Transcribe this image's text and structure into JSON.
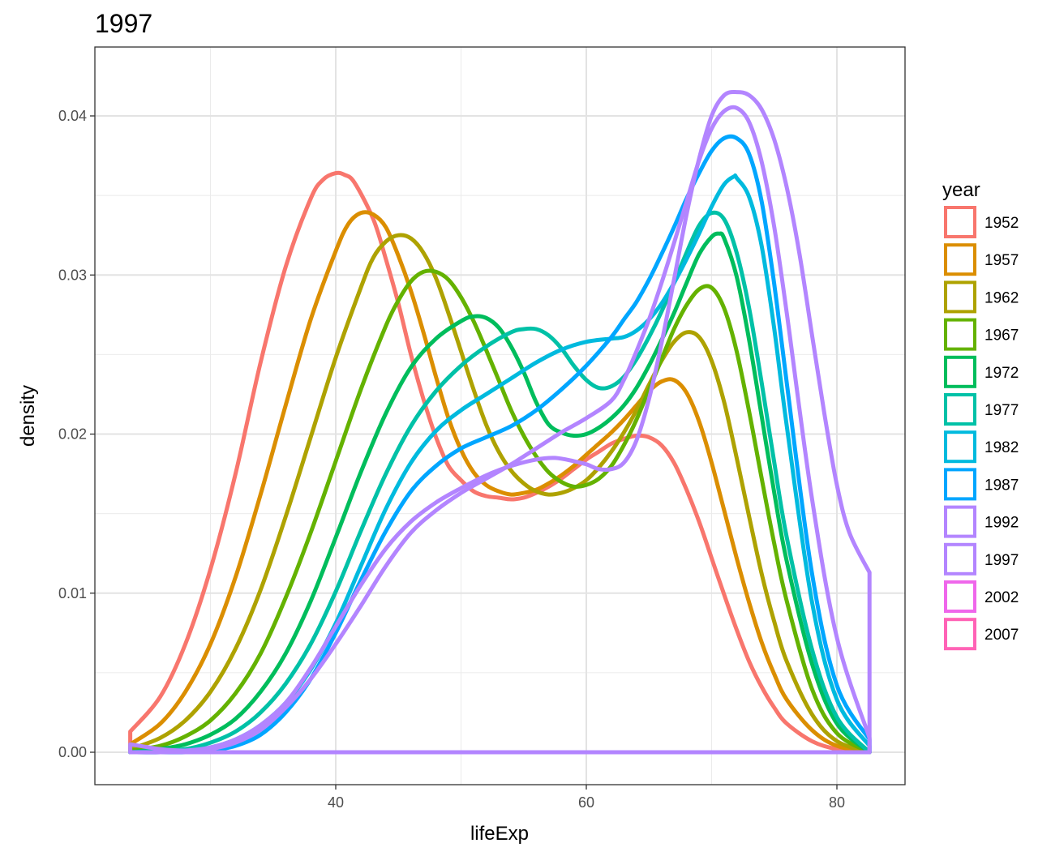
{
  "chart_data": {
    "type": "line",
    "title": "1997",
    "xlabel": "lifeExp",
    "ylabel": "density",
    "xlim": [
      20.2,
      85.4
    ],
    "ylim": [
      -0.002,
      0.0437
    ],
    "x_ticks": [
      40,
      60,
      80
    ],
    "x_tick_labels": [
      "40",
      "60",
      "80"
    ],
    "x_minor_ticks": [
      30,
      50,
      70
    ],
    "y_ticks": [
      0.0,
      0.01,
      0.02,
      0.03,
      0.04
    ],
    "y_tick_labels": [
      "0.00",
      "0.01",
      "0.02",
      "0.03",
      "0.04"
    ],
    "y_minor_ticks": [
      0.005,
      0.015,
      0.025,
      0.035
    ],
    "grid": true,
    "legend": {
      "title": "year",
      "placement": "right",
      "entries": [
        "1952",
        "1957",
        "1962",
        "1967",
        "1972",
        "1977",
        "1982",
        "1987",
        "1992",
        "1997",
        "2002",
        "2007"
      ]
    },
    "series": [
      {
        "name": "1952",
        "color": "#F8766D",
        "x": [
          23.6,
          26,
          28,
          30,
          32,
          34,
          36,
          38,
          39,
          40,
          40.7,
          41.5,
          43,
          44,
          45,
          46,
          47,
          48,
          49,
          50,
          51,
          52,
          53,
          54,
          55,
          56,
          57,
          58,
          59,
          60,
          61,
          62,
          63,
          64,
          65,
          66,
          67,
          68,
          69,
          70,
          71,
          72,
          73,
          74,
          75,
          76,
          78,
          80,
          82.6
        ],
        "y": [
          0.0013,
          0.0035,
          0.0068,
          0.0115,
          0.0175,
          0.0245,
          0.0305,
          0.0348,
          0.036,
          0.0364,
          0.0363,
          0.0358,
          0.0335,
          0.031,
          0.0282,
          0.025,
          0.0222,
          0.0198,
          0.018,
          0.0171,
          0.0164,
          0.0161,
          0.016,
          0.0159,
          0.016,
          0.0163,
          0.0167,
          0.0172,
          0.0178,
          0.0184,
          0.0189,
          0.0194,
          0.0197,
          0.0199,
          0.0198,
          0.0193,
          0.0182,
          0.0165,
          0.0145,
          0.0122,
          0.0099,
          0.0077,
          0.0057,
          0.0041,
          0.0028,
          0.0018,
          0.0007,
          0.0002,
          0.0
        ]
      },
      {
        "name": "1957",
        "color": "#DB8E00",
        "x": [
          23.6,
          26,
          28,
          30,
          32,
          34,
          36,
          38,
          40,
          41,
          42,
          43,
          44,
          45,
          46,
          47,
          48,
          49,
          50,
          51,
          52,
          53,
          54,
          55,
          56,
          57,
          58,
          59,
          60,
          61,
          62,
          63,
          64,
          65,
          66,
          67,
          68,
          69,
          70,
          71,
          72,
          73,
          74,
          75,
          76,
          78,
          80,
          82.6
        ],
        "y": [
          0.0005,
          0.0018,
          0.0038,
          0.0068,
          0.011,
          0.0162,
          0.0218,
          0.0272,
          0.0315,
          0.0332,
          0.0339,
          0.0338,
          0.033,
          0.0312,
          0.029,
          0.0264,
          0.0236,
          0.021,
          0.019,
          0.0176,
          0.0168,
          0.0164,
          0.0162,
          0.0163,
          0.0165,
          0.0169,
          0.0174,
          0.018,
          0.0187,
          0.0194,
          0.0201,
          0.0209,
          0.0218,
          0.0227,
          0.0233,
          0.0234,
          0.0226,
          0.0208,
          0.0182,
          0.0152,
          0.0122,
          0.0094,
          0.0069,
          0.0049,
          0.0033,
          0.0014,
          0.0004,
          0.0
        ]
      },
      {
        "name": "1962",
        "color": "#AEA200",
        "x": [
          23.6,
          26,
          28,
          30,
          32,
          34,
          36,
          38,
          40,
          42,
          43,
          44,
          45,
          46,
          47,
          48,
          49,
          50,
          51,
          52,
          53,
          54,
          55,
          56,
          57,
          58,
          59,
          60,
          61,
          62,
          63,
          64,
          65,
          66,
          67,
          68,
          69,
          70,
          71,
          72,
          73,
          74,
          75,
          76,
          78,
          80,
          82.6
        ],
        "y": [
          0.0002,
          0.0009,
          0.002,
          0.0038,
          0.0065,
          0.0102,
          0.0148,
          0.0198,
          0.0248,
          0.0292,
          0.0311,
          0.0321,
          0.0325,
          0.0323,
          0.0314,
          0.0298,
          0.0276,
          0.0252,
          0.0228,
          0.0206,
          0.0189,
          0.0177,
          0.0169,
          0.0164,
          0.0162,
          0.0163,
          0.0166,
          0.0171,
          0.0179,
          0.0189,
          0.0201,
          0.0215,
          0.0231,
          0.0246,
          0.0258,
          0.0264,
          0.0261,
          0.0246,
          0.022,
          0.0185,
          0.0148,
          0.0112,
          0.0082,
          0.0057,
          0.0024,
          0.0007,
          0.0
        ]
      },
      {
        "name": "1967",
        "color": "#64B200",
        "x": [
          23.6,
          26,
          28,
          30,
          32,
          34,
          36,
          38,
          40,
          42,
          44,
          45,
          46,
          47,
          48,
          49,
          50,
          51,
          52,
          53,
          54,
          55,
          56,
          57,
          58,
          59,
          60,
          61,
          62,
          63,
          64,
          65,
          66,
          67,
          68,
          69,
          70,
          71,
          72,
          73,
          74,
          75,
          76,
          78,
          80,
          82.6
        ],
        "y": [
          0.0001,
          0.0004,
          0.001,
          0.002,
          0.0037,
          0.0062,
          0.0097,
          0.0138,
          0.0183,
          0.0228,
          0.0268,
          0.0284,
          0.0296,
          0.0302,
          0.0302,
          0.0297,
          0.0286,
          0.0271,
          0.0253,
          0.0234,
          0.0215,
          0.0199,
          0.0186,
          0.0176,
          0.017,
          0.0167,
          0.0168,
          0.0172,
          0.018,
          0.0193,
          0.0209,
          0.0228,
          0.0247,
          0.0266,
          0.0281,
          0.0291,
          0.0292,
          0.0279,
          0.0252,
          0.0214,
          0.0172,
          0.0131,
          0.0095,
          0.004,
          0.0012,
          0.0
        ]
      },
      {
        "name": "1972",
        "color": "#00BD5C",
        "x": [
          23.6,
          26,
          28,
          30,
          32,
          34,
          36,
          38,
          40,
          42,
          44,
          46,
          48,
          50,
          51,
          52,
          53,
          54,
          55,
          56,
          57,
          58,
          59,
          60,
          61,
          62,
          63,
          64,
          65,
          66,
          67,
          68,
          69,
          70,
          70.6,
          71,
          72,
          73,
          74,
          75,
          76,
          78,
          80,
          82.6
        ],
        "y": [
          0.0,
          0.0002,
          0.0005,
          0.0011,
          0.0021,
          0.0038,
          0.0062,
          0.0095,
          0.0135,
          0.0176,
          0.0213,
          0.0242,
          0.026,
          0.0271,
          0.0274,
          0.0273,
          0.0267,
          0.0255,
          0.0239,
          0.022,
          0.0206,
          0.0201,
          0.0199,
          0.02,
          0.0204,
          0.021,
          0.0218,
          0.0229,
          0.0243,
          0.0259,
          0.0276,
          0.0295,
          0.0313,
          0.0324,
          0.0326,
          0.0323,
          0.0299,
          0.0259,
          0.0211,
          0.0163,
          0.012,
          0.0056,
          0.0018,
          0.0
        ]
      },
      {
        "name": "1977",
        "color": "#00C1A7",
        "x": [
          23.6,
          26,
          28,
          30,
          32,
          34,
          36,
          38,
          40,
          42,
          44,
          46,
          48,
          50,
          52,
          54,
          55,
          56,
          57,
          58,
          59,
          60,
          61,
          62,
          63,
          64,
          65,
          66,
          67,
          68,
          69,
          70,
          71,
          72,
          73,
          74,
          75,
          76,
          78,
          80,
          82.6
        ],
        "y": [
          0.0,
          0.0001,
          0.0002,
          0.0006,
          0.0013,
          0.0025,
          0.0043,
          0.0068,
          0.0101,
          0.0139,
          0.0175,
          0.0205,
          0.0227,
          0.0243,
          0.0255,
          0.0264,
          0.0266,
          0.0266,
          0.0262,
          0.0254,
          0.0243,
          0.0234,
          0.0229,
          0.023,
          0.0236,
          0.0247,
          0.0261,
          0.0277,
          0.0295,
          0.0314,
          0.0331,
          0.0339,
          0.0335,
          0.0314,
          0.0279,
          0.0232,
          0.0182,
          0.0135,
          0.0065,
          0.0022,
          0.0
        ]
      },
      {
        "name": "1982",
        "color": "#00BADE",
        "x": [
          23.6,
          26,
          28,
          30,
          32,
          34,
          36,
          38,
          40,
          42,
          44,
          46,
          48,
          50,
          52,
          54,
          56,
          58,
          60,
          62,
          63,
          64,
          65,
          66,
          67,
          68,
          69,
          70,
          71,
          71.8,
          72,
          73,
          74,
          75,
          76,
          78,
          80,
          82.6
        ],
        "y": [
          0.0,
          0.0,
          0.0001,
          0.0003,
          0.0008,
          0.0017,
          0.0031,
          0.0052,
          0.0081,
          0.0117,
          0.0153,
          0.0182,
          0.0202,
          0.0215,
          0.0225,
          0.0235,
          0.0245,
          0.0253,
          0.0258,
          0.026,
          0.0261,
          0.0265,
          0.0272,
          0.0282,
          0.0295,
          0.031,
          0.0326,
          0.0343,
          0.0357,
          0.0362,
          0.0361,
          0.0349,
          0.0318,
          0.0266,
          0.0205,
          0.0095,
          0.0033,
          0.0004
        ]
      },
      {
        "name": "1987",
        "color": "#00A6FF",
        "x": [
          23.6,
          26,
          28,
          30,
          32,
          34,
          36,
          38,
          40,
          42,
          44,
          46,
          48,
          50,
          52,
          54,
          56,
          58,
          60,
          62,
          63,
          64,
          65,
          66,
          67,
          68,
          69,
          70,
          71,
          72,
          73,
          74,
          75,
          76,
          78,
          80,
          82.6
        ],
        "y": [
          0.0,
          0.0,
          0.0,
          0.0001,
          0.0004,
          0.0011,
          0.0025,
          0.0046,
          0.0075,
          0.0108,
          0.0139,
          0.0164,
          0.018,
          0.0191,
          0.0198,
          0.0205,
          0.0215,
          0.0228,
          0.0243,
          0.0261,
          0.0272,
          0.0283,
          0.0297,
          0.0313,
          0.033,
          0.0348,
          0.0364,
          0.0378,
          0.0386,
          0.0386,
          0.0376,
          0.0346,
          0.0294,
          0.0232,
          0.0113,
          0.0042,
          0.0008
        ]
      },
      {
        "name": "1992",
        "color": "#B385FF",
        "x": [
          23.6,
          26,
          28,
          30,
          32,
          34,
          36,
          38,
          40,
          42,
          44,
          46,
          48,
          50,
          52,
          54,
          56,
          58,
          60,
          62,
          63,
          64,
          65,
          66,
          67,
          68,
          69,
          70,
          71,
          72,
          73,
          74,
          75,
          76,
          78,
          80,
          82.6
        ],
        "y": [
          0.0005,
          0.0002,
          0.0001,
          0.0002,
          0.0006,
          0.0014,
          0.0028,
          0.0046,
          0.0068,
          0.0092,
          0.0117,
          0.0138,
          0.0152,
          0.0163,
          0.0172,
          0.0181,
          0.0191,
          0.0201,
          0.021,
          0.0221,
          0.0234,
          0.0252,
          0.0272,
          0.0295,
          0.032,
          0.0346,
          0.0372,
          0.0392,
          0.0403,
          0.0405,
          0.0396,
          0.0371,
          0.033,
          0.0276,
          0.016,
          0.0072,
          0.0009
        ]
      },
      {
        "name": "1997",
        "color": "#B385FF",
        "x": [
          23.6,
          26,
          28,
          30,
          32,
          34,
          36,
          38,
          40,
          42,
          44,
          46,
          48,
          50,
          52,
          54,
          56,
          57.5,
          59,
          60,
          61,
          62,
          63,
          64,
          65,
          66,
          67,
          68,
          69,
          70,
          71,
          72,
          73,
          74,
          75,
          76,
          77,
          78,
          79,
          80,
          81,
          82.6
        ],
        "y": [
          0.0,
          0.0,
          0.0001,
          0.0003,
          0.0008,
          0.0017,
          0.0031,
          0.0053,
          0.0079,
          0.0105,
          0.0128,
          0.0145,
          0.0157,
          0.0166,
          0.0174,
          0.018,
          0.0184,
          0.0185,
          0.0183,
          0.0181,
          0.0178,
          0.0178,
          0.0182,
          0.0196,
          0.0222,
          0.0257,
          0.0297,
          0.0338,
          0.0373,
          0.04,
          0.0413,
          0.0415,
          0.0413,
          0.0404,
          0.0385,
          0.0355,
          0.0314,
          0.0263,
          0.0213,
          0.0168,
          0.0138,
          0.0113
        ]
      },
      {
        "name": "2002",
        "color": "#EF67EB",
        "x": [],
        "y": []
      },
      {
        "name": "2007",
        "color": "#FF63B6",
        "x": [],
        "y": []
      }
    ],
    "baseline_color": "#B385FF"
  }
}
